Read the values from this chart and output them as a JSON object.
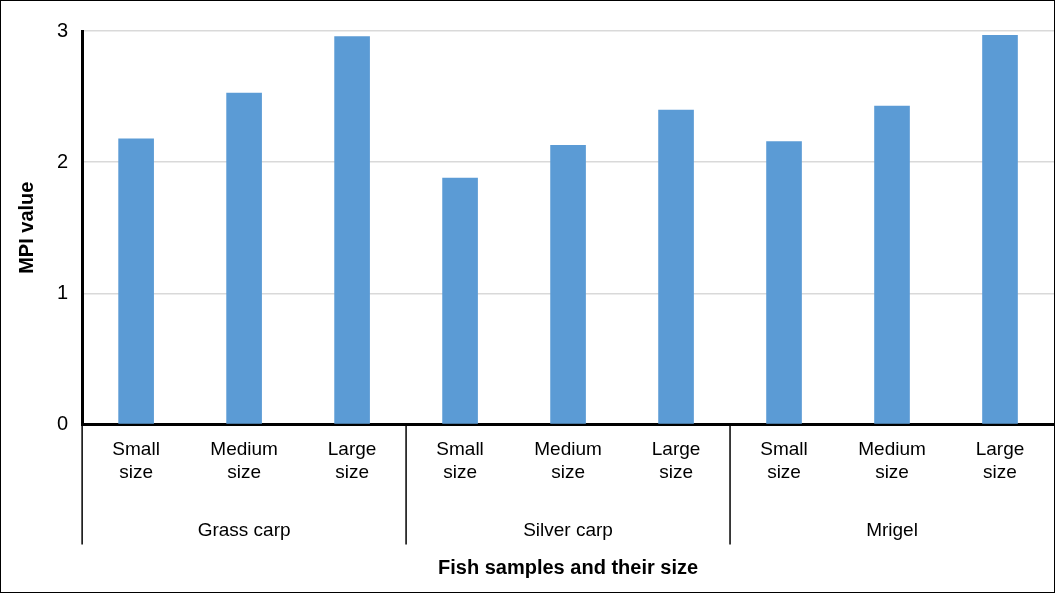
{
  "chart_data": {
    "type": "bar",
    "xlabel": "Fish samples and their size",
    "ylabel": "MPI value",
    "categories": [
      "Small size",
      "Medium size",
      "Large size",
      "Small size",
      "Medium size",
      "Large size",
      "Small size",
      "Medium size",
      "Large size"
    ],
    "values": [
      2.18,
      2.53,
      2.96,
      1.88,
      2.13,
      2.4,
      2.16,
      2.43,
      2.97
    ],
    "color": "#5b9bd5",
    "annotations": [
      "Grass carp",
      "Silver carp",
      "Mrigel"
    ],
    "ylim": [
      0,
      3
    ],
    "yticks": [
      0,
      1,
      2,
      3
    ],
    "grid": "y",
    "legend": false
  }
}
